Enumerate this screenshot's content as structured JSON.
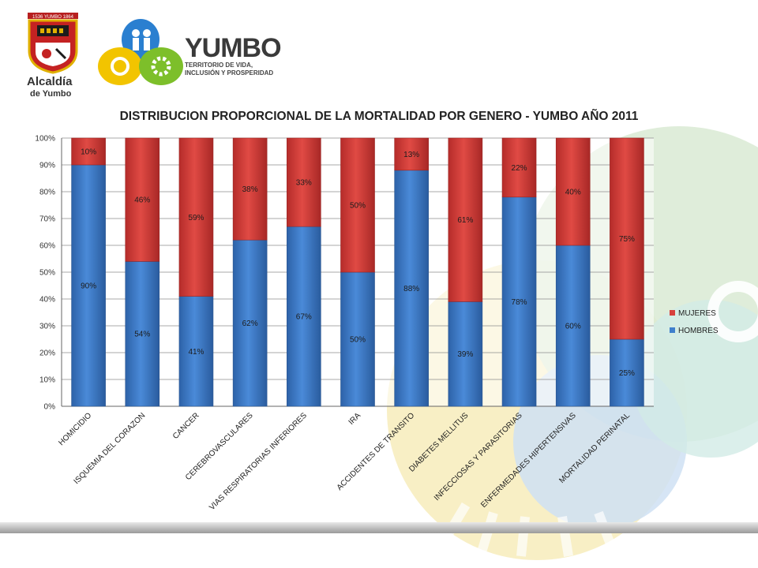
{
  "header": {
    "alcaldia_name": "Alcaldía",
    "alcaldia_sub": "de Yumbo",
    "seal_text": "1536 YUMBO 1864",
    "yumbo_title": "YUMBO",
    "yumbo_tag1": "TERRITORIO DE VIDA,",
    "yumbo_tag2": "INCLUSIÓN Y PROSPERIDAD"
  },
  "colors": {
    "mujeres": "#d7403c",
    "hombres": "#3f7fcc",
    "grid": "#8c8c8c"
  },
  "chart_data": {
    "type": "bar",
    "stacked": true,
    "title": "DISTRIBUCION PROPORCIONAL DE LA MORTALIDAD POR GENERO - YUMBO AÑO 2011",
    "categories": [
      "HOMICIDIO",
      "ISQUEMIA DEL CORAZON",
      "CANCER",
      "CEREBROVASCULARES",
      "VIAS RESPIRATORIAS INFERIORES",
      "IRA",
      "ACCIDENTES DE TRANSITO",
      "DIABETES MELLITUS",
      "INFECCIOSAS Y PARASITORIAS",
      "ENFERMEDADES HIPERTENSIVAS",
      "MORTALIDAD PERINATAL"
    ],
    "series": [
      {
        "name": "HOMBRES",
        "values": [
          90,
          54,
          41,
          62,
          67,
          50,
          88,
          39,
          78,
          60,
          25
        ],
        "labels": [
          "90%",
          "54%",
          "41%",
          "62%",
          "67%",
          "50%",
          "88%",
          "39%",
          "78%",
          "60%",
          "25%"
        ]
      },
      {
        "name": "MUJERES",
        "values": [
          10,
          46,
          59,
          38,
          33,
          50,
          13,
          61,
          22,
          40,
          75
        ],
        "labels": [
          "10%",
          "46%",
          "59%",
          "38%",
          "33%",
          "50%",
          "13%",
          "61%",
          "22%",
          "40%",
          "75%"
        ]
      }
    ],
    "yticks": [
      "0%",
      "10%",
      "20%",
      "30%",
      "40%",
      "50%",
      "60%",
      "70%",
      "80%",
      "90%",
      "100%"
    ],
    "ylim": [
      0,
      100
    ],
    "grid": true,
    "legend": [
      "MUJERES",
      "HOMBRES"
    ],
    "legend_position": "right"
  }
}
